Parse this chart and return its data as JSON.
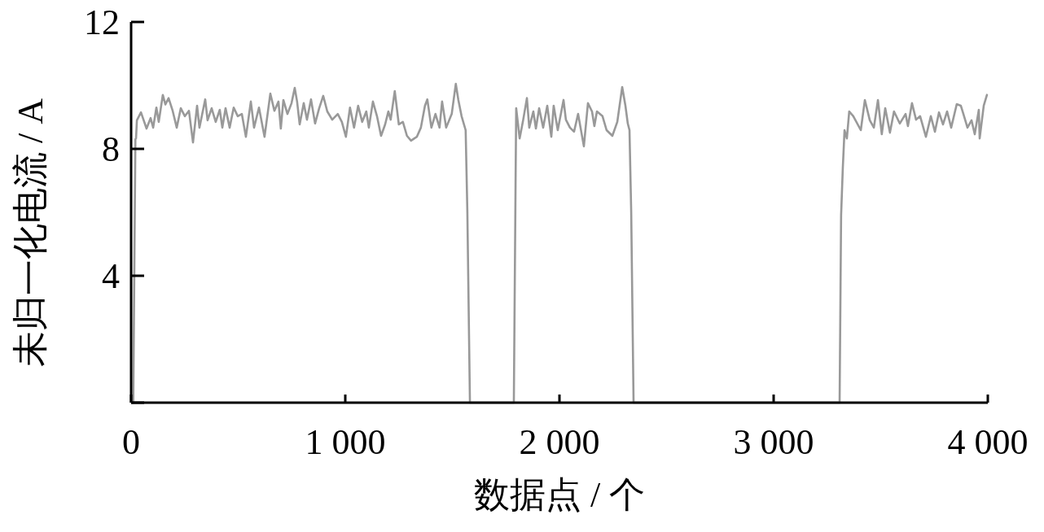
{
  "chart_data": {
    "type": "line",
    "xlabel": "数据点 / 个",
    "ylabel": "未归一化电流 / A",
    "xlim": [
      0,
      4000
    ],
    "ylim": [
      0,
      12
    ],
    "xticks": [
      0,
      {
        "value": 1000,
        "label": "1 000"
      },
      {
        "value": 2000,
        "label": "2 000"
      },
      {
        "value": 3000,
        "label": "3 000"
      },
      {
        "value": 4000,
        "label": "4 000"
      }
    ],
    "yticks": [
      {
        "value": 0,
        "label": null
      },
      4,
      8,
      12
    ],
    "grid": false,
    "marker": "none",
    "line_style": "solid",
    "series": [
      {
        "color": "#999999",
        "x": [
          10,
          20,
          23,
          27,
          46,
          72,
          91,
          103,
          118,
          129,
          148,
          160,
          175,
          194,
          213,
          232,
          251,
          270,
          289,
          308,
          319,
          346,
          357,
          376,
          395,
          414,
          426,
          441,
          460,
          479,
          498,
          517,
          536,
          559,
          574,
          597,
          623,
          650,
          669,
          688,
          699,
          711,
          730,
          749,
          764,
          775,
          787,
          806,
          821,
          840,
          859,
          878,
          897,
          916,
          939,
          965,
          984,
          1003,
          1022,
          1041,
          1060,
          1079,
          1098,
          1110,
          1129,
          1148,
          1167,
          1186,
          1201,
          1212,
          1231,
          1250,
          1269,
          1288,
          1307,
          1334,
          1353,
          1372,
          1383,
          1402,
          1421,
          1440,
          1452,
          1471,
          1497,
          1516,
          1528,
          1543,
          1562,
          1570,
          1582,
          1787,
          1795,
          1798,
          1814,
          1829,
          1848,
          1859,
          1878,
          1890,
          1905,
          1924,
          1943,
          1962,
          1973,
          1992,
          2019,
          2030,
          2049,
          2068,
          2087,
          2114,
          2133,
          2152,
          2163,
          2175,
          2201,
          2220,
          2247,
          2270,
          2293,
          2308,
          2319,
          2327,
          2335,
          2346,
          3308,
          3315,
          3323,
          3331,
          3342,
          3353,
          3372,
          3407,
          3426,
          3449,
          3468,
          3487,
          3505,
          3521,
          3543,
          3562,
          3589,
          3616,
          3627,
          3646,
          3665,
          3684,
          3711,
          3734,
          3753,
          3772,
          3791,
          3810,
          3829,
          3855,
          3874,
          3886,
          3905,
          3924,
          3939,
          3958,
          3962,
          3981,
          3996
        ],
        "values": [
          0,
          8.3,
          8.33,
          8.9,
          9.15,
          8.64,
          8.97,
          8.67,
          9.3,
          8.85,
          9.7,
          9.4,
          9.6,
          9.2,
          8.67,
          9.28,
          9.03,
          9.2,
          8.2,
          9.36,
          8.67,
          9.56,
          8.9,
          9.28,
          8.85,
          9.23,
          8.67,
          9.28,
          8.67,
          9.3,
          9.03,
          9.1,
          8.38,
          9.49,
          8.67,
          9.3,
          8.38,
          9.74,
          9.2,
          9.49,
          8.64,
          9.54,
          9.1,
          9.44,
          9.92,
          9.49,
          8.77,
          9.44,
          8.92,
          9.56,
          8.8,
          9.28,
          9.67,
          9.18,
          8.92,
          9.1,
          8.85,
          8.38,
          9.3,
          8.67,
          9.36,
          8.85,
          9.18,
          8.67,
          9.49,
          9.03,
          8.41,
          8.77,
          9.18,
          8.92,
          9.82,
          8.77,
          8.85,
          8.41,
          8.26,
          8.38,
          8.67,
          9.36,
          9.56,
          8.67,
          9.1,
          8.67,
          9.49,
          8.67,
          9.1,
          10.05,
          9.54,
          9.03,
          8.59,
          6,
          0,
          0,
          6.85,
          9.28,
          8.33,
          8.85,
          9.6,
          8.67,
          9.18,
          8.64,
          9.28,
          8.67,
          9.36,
          8.38,
          9.36,
          8.59,
          9.54,
          8.92,
          8.67,
          8.54,
          9.1,
          8.08,
          9.44,
          9.18,
          8.72,
          9.18,
          9.03,
          8.59,
          8.41,
          8.85,
          9.95,
          9.36,
          8.8,
          8.59,
          6,
          0,
          0,
          5.9,
          7.4,
          8.59,
          8.33,
          9.18,
          9.03,
          8.59,
          9.54,
          8.9,
          8.67,
          9.54,
          8.46,
          9.28,
          8.51,
          9.18,
          8.8,
          9.1,
          8.72,
          9.44,
          8.92,
          9.03,
          8.38,
          9.03,
          8.54,
          9.15,
          8.77,
          9.18,
          8.67,
          9.41,
          9.36,
          9.1,
          8.67,
          8.9,
          8.46,
          9.23,
          8.33,
          9.36,
          9.7
        ]
      }
    ]
  }
}
